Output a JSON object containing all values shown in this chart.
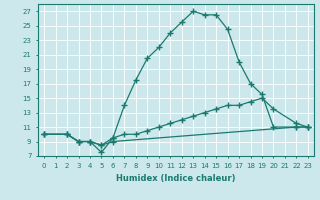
{
  "xlabel": "Humidex (Indice chaleur)",
  "xlim": [
    -0.5,
    23.5
  ],
  "ylim": [
    7,
    28
  ],
  "xticks": [
    0,
    1,
    2,
    3,
    4,
    5,
    6,
    7,
    8,
    9,
    10,
    11,
    12,
    13,
    14,
    15,
    16,
    17,
    18,
    19,
    20,
    21,
    22,
    23
  ],
  "yticks": [
    7,
    9,
    11,
    13,
    15,
    17,
    19,
    21,
    23,
    25,
    27
  ],
  "bg_color": "#cce8ec",
  "line_color": "#1a7a6e",
  "grid_color": "#b0d4d8",
  "line1_x": [
    0,
    2,
    3,
    4,
    5,
    6,
    7,
    8,
    9,
    10,
    11,
    12,
    13,
    14,
    15,
    16,
    17,
    18,
    19,
    20,
    22,
    23
  ],
  "line1_y": [
    10,
    10,
    9,
    9,
    7.5,
    9.5,
    14,
    17.5,
    20.5,
    22,
    24,
    25.5,
    27,
    26.5,
    26.5,
    24.5,
    20,
    17,
    15.5,
    11,
    11,
    11
  ],
  "line2_x": [
    0,
    2,
    3,
    4,
    5,
    6,
    7,
    8,
    9,
    10,
    11,
    12,
    13,
    14,
    15,
    16,
    17,
    18,
    19,
    20,
    22,
    23
  ],
  "line2_y": [
    10,
    10,
    9,
    9,
    8.5,
    9.5,
    10,
    10,
    10.5,
    11,
    11.5,
    12,
    12.5,
    13,
    13.5,
    14,
    14,
    14.5,
    15,
    13.5,
    11.5,
    11
  ],
  "line3_x": [
    0,
    2,
    3,
    4,
    5,
    6,
    22,
    23
  ],
  "line3_y": [
    10,
    10,
    9,
    9,
    8.5,
    9,
    11,
    11
  ]
}
